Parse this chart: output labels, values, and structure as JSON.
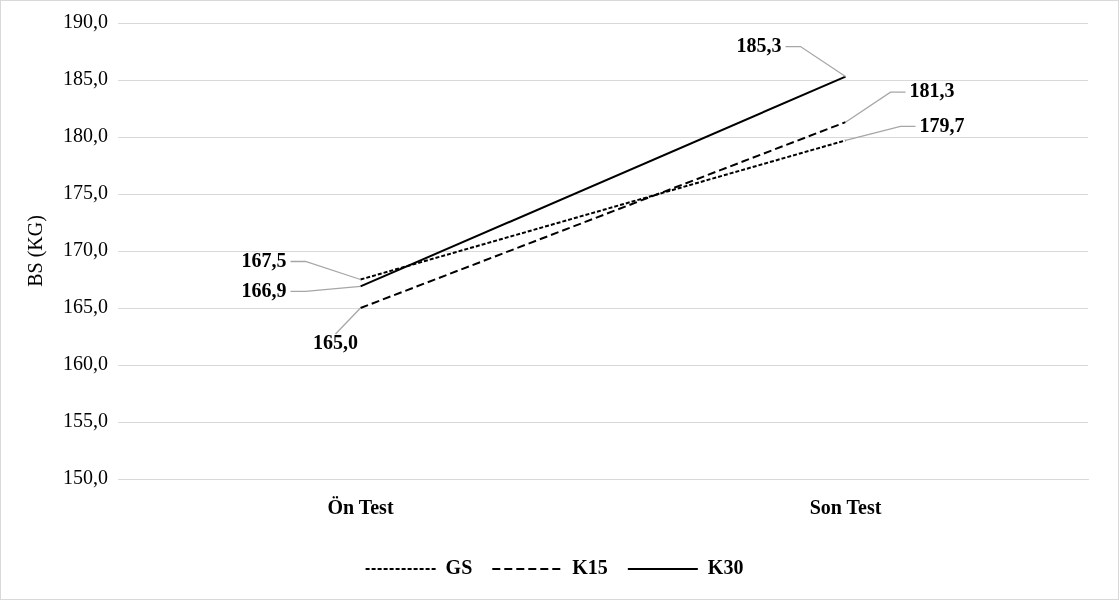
{
  "chart_data": {
    "type": "line",
    "ylabel": "BS (KG)",
    "categories": [
      "Ön Test",
      "Son Test"
    ],
    "series": [
      {
        "name": "GS",
        "color": "#000000",
        "line_style": "dotted",
        "values": [
          167.5,
          179.7
        ],
        "value_labels": [
          "167,5",
          "179,7"
        ]
      },
      {
        "name": "K15",
        "color": "#000000",
        "line_style": "dashed",
        "values": [
          165.0,
          181.3
        ],
        "value_labels": [
          "165,0",
          "181,3"
        ]
      },
      {
        "name": "K30",
        "color": "#000000",
        "line_style": "solid",
        "values": [
          166.9,
          185.3
        ],
        "value_labels": [
          "166,9",
          "185,3"
        ]
      }
    ],
    "ylim": [
      150,
      190
    ],
    "yticks": [
      {
        "value": 150,
        "label": "150,0"
      },
      {
        "value": 155,
        "label": "155,0"
      },
      {
        "value": 160,
        "label": "160,0"
      },
      {
        "value": 165,
        "label": "165,0"
      },
      {
        "value": 170,
        "label": "170,0"
      },
      {
        "value": 175,
        "label": "175,0"
      },
      {
        "value": 180,
        "label": "180,0"
      },
      {
        "value": 185,
        "label": "185,0"
      },
      {
        "value": 190,
        "label": "190,0"
      }
    ],
    "grid": "y",
    "legend": "bottom",
    "marker": "none"
  }
}
